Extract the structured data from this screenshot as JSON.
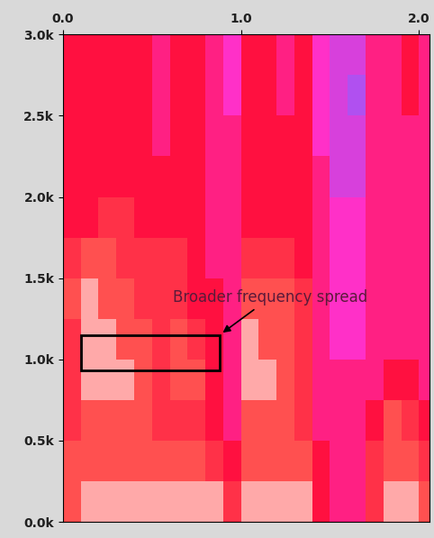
{
  "chart_data": {
    "type": "heatmap",
    "x_edges": [
      0,
      0.1,
      0.2,
      0.3,
      0.4,
      0.5,
      0.6,
      0.7,
      0.8,
      0.9,
      1.0,
      1.1,
      1.2,
      1.3,
      1.4,
      1.5,
      1.6,
      1.7,
      1.8,
      1.9,
      2.0,
      2.06
    ],
    "y_edges": [
      0,
      250,
      500,
      750,
      1000,
      1250,
      1500,
      1750,
      2000,
      2250,
      2500,
      2750,
      3000
    ],
    "cells": [
      [
        8,
        9,
        9,
        9,
        9,
        9,
        9,
        9,
        9,
        7,
        9,
        9,
        9,
        9,
        6,
        5,
        5,
        7,
        9,
        9,
        8
      ],
      [
        8,
        8,
        8,
        8,
        8,
        8,
        8,
        8,
        7,
        6,
        8,
        8,
        8,
        8,
        6,
        5,
        5,
        7,
        8,
        8,
        7
      ],
      [
        7,
        8,
        8,
        8,
        8,
        7,
        7,
        7,
        6,
        5,
        8,
        8,
        8,
        7,
        5,
        5,
        5,
        6,
        8,
        7,
        6
      ],
      [
        7,
        9,
        9,
        9,
        8,
        7,
        8,
        8,
        6,
        5,
        9,
        9,
        8,
        7,
        5,
        5,
        5,
        5,
        6,
        6,
        5
      ],
      [
        7,
        9,
        9,
        8,
        8,
        7,
        8,
        7,
        6,
        5,
        9,
        8,
        8,
        7,
        5,
        4,
        4,
        5,
        5,
        5,
        5
      ],
      [
        8,
        9,
        8,
        8,
        7,
        7,
        7,
        6,
        6,
        5,
        8,
        8,
        8,
        7,
        5,
        4,
        4,
        5,
        5,
        5,
        5
      ],
      [
        7,
        8,
        8,
        7,
        7,
        7,
        7,
        6,
        5,
        5,
        7,
        7,
        7,
        6,
        5,
        4,
        4,
        5,
        5,
        5,
        5
      ],
      [
        6,
        6,
        7,
        7,
        6,
        6,
        6,
        6,
        5,
        5,
        6,
        6,
        6,
        6,
        5,
        4,
        4,
        5,
        5,
        5,
        5
      ],
      [
        6,
        6,
        6,
        6,
        6,
        6,
        6,
        6,
        5,
        5,
        6,
        6,
        6,
        6,
        5,
        3,
        3,
        5,
        5,
        5,
        5
      ],
      [
        6,
        6,
        6,
        6,
        6,
        5,
        6,
        6,
        5,
        5,
        6,
        6,
        6,
        6,
        4,
        3,
        3,
        5,
        5,
        5,
        5
      ],
      [
        6,
        6,
        6,
        6,
        6,
        5,
        6,
        6,
        5,
        4,
        6,
        6,
        5,
        6,
        4,
        3,
        2,
        5,
        5,
        6,
        5
      ],
      [
        6,
        6,
        6,
        6,
        6,
        5,
        6,
        6,
        5,
        4,
        6,
        6,
        5,
        6,
        4,
        3,
        3,
        5,
        5,
        6,
        5
      ]
    ],
    "color_range": [
      0,
      10
    ],
    "xlim": [
      0,
      2.06
    ],
    "ylim": [
      0,
      3000
    ],
    "xticks": [
      {
        "value": 0,
        "label": "0.0"
      },
      {
        "value": 1,
        "label": "1.0"
      },
      {
        "value": 2,
        "label": "2.0"
      }
    ],
    "yticks": [
      {
        "value": 0,
        "label": "0.0k"
      },
      {
        "value": 500,
        "label": "0.5k"
      },
      {
        "value": 1000,
        "label": "1.0k"
      },
      {
        "value": 1500,
        "label": "1.5k"
      },
      {
        "value": 2000,
        "label": "2.0k"
      },
      {
        "value": 2500,
        "label": "2.5k"
      },
      {
        "value": 3000,
        "label": "3.0k"
      }
    ],
    "annotations": [
      {
        "text": "Broader frequency spread"
      }
    ]
  }
}
